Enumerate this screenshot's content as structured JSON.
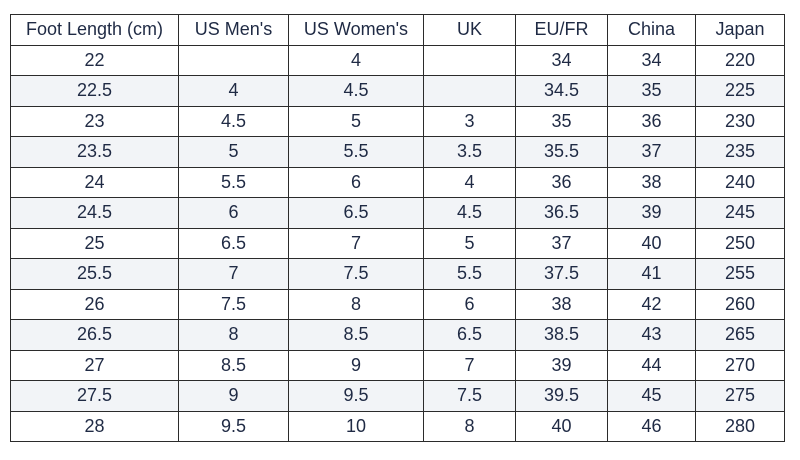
{
  "table": {
    "headers": [
      "Foot Length (cm)",
      "US Men's",
      "US Women's",
      "UK",
      "EU/FR",
      "China",
      "Japan"
    ],
    "rows": [
      [
        "22",
        "",
        "4",
        "",
        "34",
        "34",
        "220"
      ],
      [
        "22.5",
        "4",
        "4.5",
        "",
        "34.5",
        "35",
        "225"
      ],
      [
        "23",
        "4.5",
        "5",
        "3",
        "35",
        "36",
        "230"
      ],
      [
        "23.5",
        "5",
        "5.5",
        "3.5",
        "35.5",
        "37",
        "235"
      ],
      [
        "24",
        "5.5",
        "6",
        "4",
        "36",
        "38",
        "240"
      ],
      [
        "24.5",
        "6",
        "6.5",
        "4.5",
        "36.5",
        "39",
        "245"
      ],
      [
        "25",
        "6.5",
        "7",
        "5",
        "37",
        "40",
        "250"
      ],
      [
        "25.5",
        "7",
        "7.5",
        "5.5",
        "37.5",
        "41",
        "255"
      ],
      [
        "26",
        "7.5",
        "8",
        "6",
        "38",
        "42",
        "260"
      ],
      [
        "26.5",
        "8",
        "8.5",
        "6.5",
        "38.5",
        "43",
        "265"
      ],
      [
        "27",
        "8.5",
        "9",
        "7",
        "39",
        "44",
        "270"
      ],
      [
        "27.5",
        "9",
        "9.5",
        "7.5",
        "39.5",
        "45",
        "275"
      ],
      [
        "28",
        "9.5",
        "10",
        "8",
        "40",
        "46",
        "280"
      ]
    ]
  }
}
